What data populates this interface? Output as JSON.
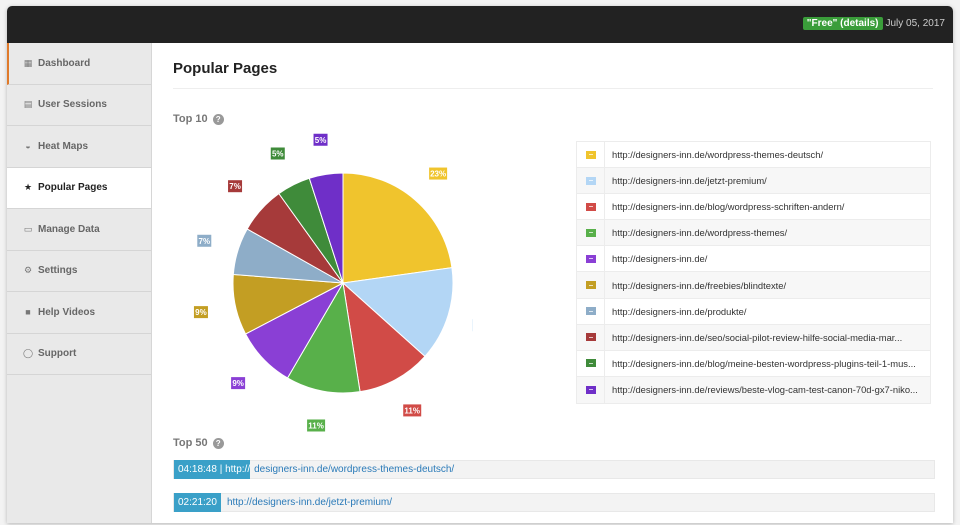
{
  "topbar": {
    "badge_label": "\"Free\" (details)",
    "date": "July 05, 2017"
  },
  "sidebar": {
    "items": [
      {
        "label": "Dashboard",
        "icon": "table-icon"
      },
      {
        "label": "User Sessions",
        "icon": "chart-icon"
      },
      {
        "label": "Heat Maps",
        "icon": "dashboard-icon"
      },
      {
        "label": "Popular Pages",
        "icon": "star-icon"
      },
      {
        "label": "Manage Data",
        "icon": "lock-icon"
      },
      {
        "label": "Settings",
        "icon": "gears-icon"
      },
      {
        "label": "Help Videos",
        "icon": "video-icon"
      },
      {
        "label": "Support",
        "icon": "chat-icon"
      }
    ],
    "active": "Popular Pages"
  },
  "page": {
    "title": "Popular Pages",
    "top10_label": "Top 10",
    "top50_label": "Top 50"
  },
  "chart_data": {
    "type": "pie",
    "series": [
      {
        "label": "23%",
        "value": 23,
        "color": "#f0c42d"
      },
      {
        "label": "14%",
        "value": 14,
        "color": "#b3d6f5"
      },
      {
        "label": "11%",
        "value": 11,
        "color": "#d14b47"
      },
      {
        "label": "11%",
        "value": 11,
        "color": "#58b04a"
      },
      {
        "label": "9%",
        "value": 9,
        "color": "#8a3fd5"
      },
      {
        "label": "9%",
        "value": 9,
        "color": "#c39e23"
      },
      {
        "label": "7%",
        "value": 7,
        "color": "#8eadc8"
      },
      {
        "label": "7%",
        "value": 7,
        "color": "#a63a3a"
      },
      {
        "label": "5%",
        "value": 5,
        "color": "#3f8b3a"
      },
      {
        "label": "5%",
        "value": 5,
        "color": "#6f2fc8"
      }
    ]
  },
  "legend": [
    {
      "url": "http://designers-inn.de/wordpress-themes-deutsch/",
      "color": "#f0c42d"
    },
    {
      "url": "http://designers-inn.de/jetzt-premium/",
      "color": "#b3d6f5"
    },
    {
      "url": "http://designers-inn.de/blog/wordpress-schriften-andern/",
      "color": "#d14b47"
    },
    {
      "url": "http://designers-inn.de/wordpress-themes/",
      "color": "#58b04a"
    },
    {
      "url": "http://designers-inn.de/",
      "color": "#8a3fd5"
    },
    {
      "url": "http://designers-inn.de/freebies/blindtexte/",
      "color": "#c39e23"
    },
    {
      "url": "http://designers-inn.de/produkte/",
      "color": "#8eadc8"
    },
    {
      "url": "http://designers-inn.de/seo/social-pilot-review-hilfe-social-media-mar...",
      "color": "#a63a3a"
    },
    {
      "url": "http://designers-inn.de/blog/meine-besten-wordpress-plugins-teil-1-mus...",
      "color": "#3f8b3a"
    },
    {
      "url": "http://designers-inn.de/reviews/beste-vlog-cam-test-canon-70d-gx7-niko...",
      "color": "#6f2fc8"
    }
  ],
  "top50": [
    {
      "time": "04:18:48 | http://",
      "url": "designers-inn.de/wordpress-themes-deutsch/"
    },
    {
      "time": "02:21:20",
      "url": "http://designers-inn.de/jetzt-premium/"
    }
  ]
}
